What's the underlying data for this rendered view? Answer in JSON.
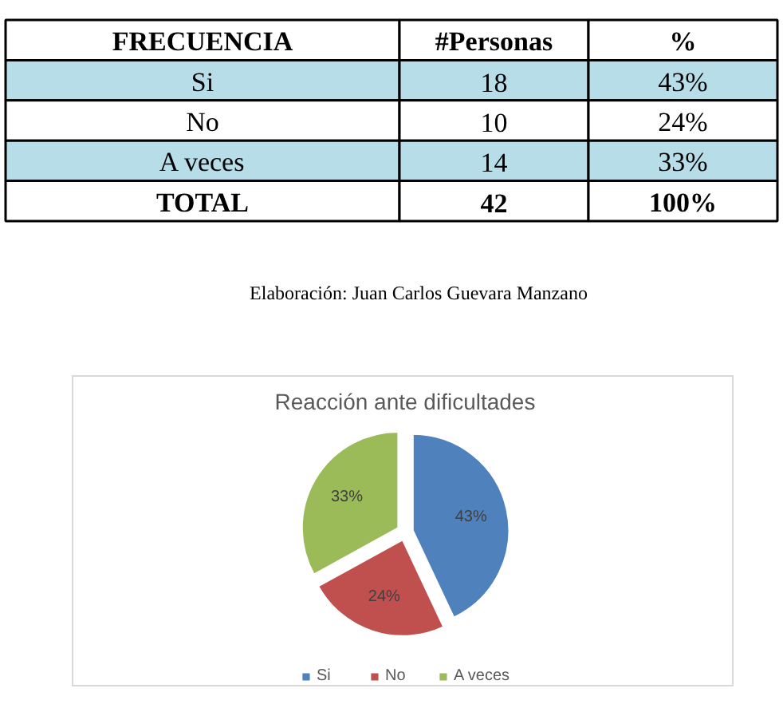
{
  "chart_data": [
    {
      "type": "heatmap",
      "ylabel": "FRECUENCIA",
      "categories": [
        "#Personas"
      ],
      "y_categories": [
        "Si",
        "No",
        "A veces",
        "TOTAL"
      ],
      "cells": [
        [
          18
        ],
        [
          10
        ],
        [
          14
        ],
        [
          42
        ]
      ],
      "data_labels": true,
      "y2label": "%",
      "y2_categories": [
        "43%",
        "24%",
        "33%",
        "100%"
      ],
      "colors": [
        "#b7dde8",
        "#ffffff",
        "#b7dde8",
        "#ffffff"
      ],
      "annotations": [
        "Elaboración: Juan Carlos Guevara Manzano"
      ]
    },
    {
      "type": "pie",
      "title": "Reacción ante dificultades",
      "categories": [
        "Si",
        "No",
        "A veces"
      ],
      "values": [
        43,
        24,
        33
      ],
      "colors": [
        "#4f81bd",
        "#c0504d",
        "#9bbb59"
      ],
      "value_labels": [
        "43%",
        "24%",
        "33%"
      ],
      "legend": "bottom"
    }
  ]
}
